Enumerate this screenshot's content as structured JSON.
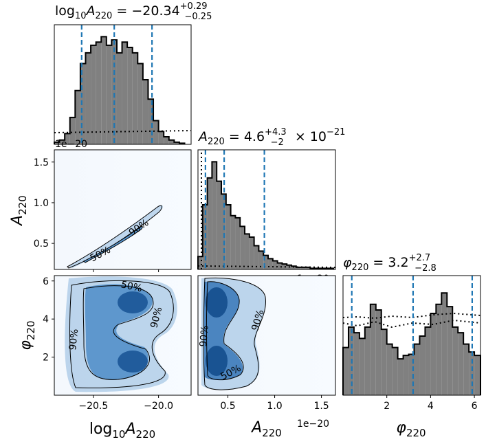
{
  "chart_data": {
    "type": "corner",
    "parameters": [
      {
        "name": "log10_A220",
        "label": "log10A220",
        "title": "log10A220 = −20.34 +0.29 −0.25",
        "title_text": {
          "lhs": "log",
          "sub1": "10",
          "var": "A",
          "sub2": "220",
          "eq": " = −20.34",
          "sup": "+0.29",
          "sub": "−0.25"
        },
        "range": [
          -20.8,
          -19.75
        ],
        "ticks": [
          -20.5,
          -20.0
        ],
        "tick_labels": [
          "−20.5",
          "−20.0"
        ],
        "median": -20.34,
        "lower": -20.59,
        "upper": -20.05
      },
      {
        "name": "A220",
        "label": "A220",
        "title": "A220 = 4.6 +4.3 −2 × 10−21",
        "title_text": {
          "var": "A",
          "sub2": "220",
          "eq": " = 4.6",
          "sup": "+4.3",
          "sub": "−2",
          "tail": " × 10",
          "exp": "−21"
        },
        "range": [
          1.8e-21,
          1.65e-20
        ],
        "ticks": [
          0.5,
          1.0,
          1.5
        ],
        "tick_labels": [
          "0.5",
          "1.0",
          "1.5"
        ],
        "offset": "1e−20",
        "median": 0.46,
        "lower": 0.26,
        "upper": 0.89
      },
      {
        "name": "phi220",
        "label": "φ220",
        "title": "φ220 = 3.2 +2.7 −2.8",
        "title_text": {
          "var": "φ",
          "sub2": "220",
          "eq": " = 3.2",
          "sup": "+2.7",
          "sub": "−2.8"
        },
        "range": [
          0,
          6.28
        ],
        "ticks": [
          2,
          4,
          6
        ],
        "tick_labels": [
          "2",
          "4",
          "6"
        ],
        "median": 3.2,
        "lower": 0.4,
        "upper": 5.9
      }
    ],
    "left_ticks": {
      "A220": {
        "ticks": [
          0.5,
          1.0,
          1.5
        ],
        "labels": [
          "0.5",
          "1.0",
          "1.5"
        ],
        "range": [
          0.18,
          1.65
        ]
      },
      "phi220": {
        "ticks": [
          2,
          4,
          6
        ],
        "labels": [
          "2",
          "4",
          "6"
        ],
        "range": [
          0,
          6.28
        ]
      }
    },
    "axis_titles": {
      "x": [
        {
          "base": "log",
          "sub1": "10",
          "var": "A",
          "sub2": "220"
        },
        {
          "var": "A",
          "sub2": "220"
        },
        {
          "var": "φ",
          "sub2": "220"
        }
      ],
      "y": [
        {
          "var": "A",
          "sub2": "220"
        },
        {
          "var": "φ",
          "sub2": "220"
        }
      ]
    },
    "offset_labels": [
      "1e−20",
      "1e−20",
      "1e−20"
    ],
    "contour_levels": [
      "50%",
      "90%"
    ],
    "histograms": {
      "log10_A220": {
        "bins_x": [
          -20.8,
          -20.76,
          -20.72,
          -20.68,
          -20.64,
          -20.6,
          -20.56,
          -20.52,
          -20.48,
          -20.44,
          -20.4,
          -20.36,
          -20.32,
          -20.28,
          -20.24,
          -20.2,
          -20.16,
          -20.12,
          -20.08,
          -20.04,
          -20.0,
          -19.96,
          -19.92,
          -19.88,
          -19.84,
          -19.8
        ],
        "counts": [
          0.02,
          0.04,
          0.1,
          0.25,
          0.5,
          0.75,
          0.85,
          0.92,
          0.95,
          1.0,
          0.92,
          0.97,
          0.85,
          0.95,
          0.9,
          0.85,
          0.75,
          0.6,
          0.42,
          0.22,
          0.12,
          0.07,
          0.04,
          0.02,
          0.01
        ]
      },
      "A220": {
        "bins_x": [
          0.18,
          0.23,
          0.28,
          0.33,
          0.38,
          0.43,
          0.48,
          0.53,
          0.58,
          0.63,
          0.68,
          0.73,
          0.78,
          0.83,
          0.88,
          0.93,
          0.98,
          1.03,
          1.08,
          1.13,
          1.18,
          1.23,
          1.28,
          1.33,
          1.38,
          1.43,
          1.48,
          1.53,
          1.58,
          1.63
        ],
        "counts": [
          0.12,
          0.6,
          0.85,
          1.0,
          0.82,
          0.7,
          0.6,
          0.5,
          0.48,
          0.4,
          0.33,
          0.3,
          0.22,
          0.17,
          0.13,
          0.1,
          0.08,
          0.06,
          0.05,
          0.04,
          0.03,
          0.02,
          0.02,
          0.02,
          0.01,
          0.01,
          0.01,
          0.01,
          0.01
        ]
      },
      "phi220": {
        "bins_x": [
          0.0,
          0.25,
          0.5,
          0.75,
          1.0,
          1.25,
          1.5,
          1.75,
          2.0,
          2.25,
          2.5,
          2.75,
          3.0,
          3.25,
          3.5,
          3.75,
          4.0,
          4.25,
          4.5,
          4.75,
          5.0,
          5.25,
          5.5,
          5.75,
          6.0,
          6.28
        ],
        "counts": [
          0.42,
          0.6,
          0.55,
          0.5,
          0.6,
          0.8,
          0.75,
          0.58,
          0.45,
          0.42,
          0.32,
          0.35,
          0.36,
          0.45,
          0.52,
          0.6,
          0.72,
          0.8,
          0.9,
          0.78,
          0.6,
          0.55,
          0.45,
          0.38,
          0.35
        ]
      }
    },
    "prior_dotted": {
      "log10_A220": 0.1,
      "A220": 0.03,
      "phi220": 0.58
    }
  }
}
